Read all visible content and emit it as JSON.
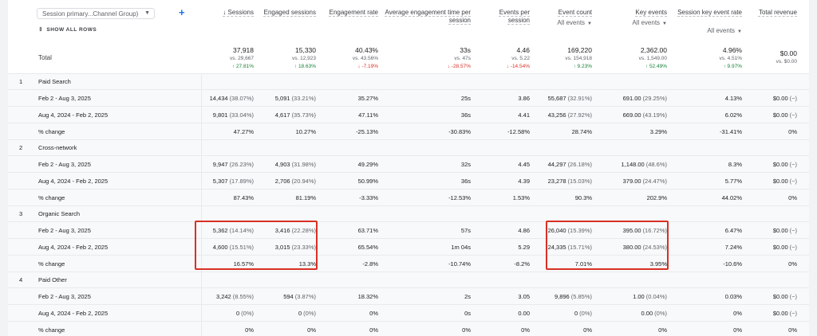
{
  "dimension_select": {
    "label": "Session primary...Channel Group)"
  },
  "show_all_rows": "SHOW ALL ROWS",
  "columns": [
    {
      "key": "sessions",
      "label": "↓ Sessions"
    },
    {
      "key": "engaged",
      "label": "Engaged sessions"
    },
    {
      "key": "engrate",
      "label": "Engagement rate"
    },
    {
      "key": "avgtime",
      "label": "Average engagement time per session"
    },
    {
      "key": "eps",
      "label": "Events per session"
    },
    {
      "key": "events",
      "label": "Event count",
      "sub": "All events"
    },
    {
      "key": "keyev",
      "label": "Key events",
      "sub": "All events"
    },
    {
      "key": "skr",
      "label": "Session key event rate",
      "sub": "All events"
    },
    {
      "key": "rev",
      "label": "Total revenue"
    }
  ],
  "total": {
    "label": "Total",
    "cells": [
      {
        "v": "37,918",
        "vs": "vs. 29,667",
        "ch": "↑ 27.81%",
        "dir": "up"
      },
      {
        "v": "15,330",
        "vs": "vs. 12,923",
        "ch": "↑ 18.63%",
        "dir": "up"
      },
      {
        "v": "40.43%",
        "vs": "vs. 43.56%",
        "ch": "↓ -7.19%",
        "dir": "down"
      },
      {
        "v": "33s",
        "vs": "vs. 47s",
        "ch": "↓ -28.57%",
        "dir": "down"
      },
      {
        "v": "4.46",
        "vs": "vs. 5.22",
        "ch": "↓ -14.54%",
        "dir": "down"
      },
      {
        "v": "169,220",
        "vs": "vs. 154,918",
        "ch": "↑ 9.23%",
        "dir": "up"
      },
      {
        "v": "2,362.00",
        "vs": "vs. 1,549.00",
        "ch": "↑ 52.49%",
        "dir": "up"
      },
      {
        "v": "4.96%",
        "vs": "vs. 4.51%",
        "ch": "↑ 9.97%",
        "dir": "up"
      },
      {
        "v": "$0.00",
        "vs": "vs. $0.00",
        "ch": "",
        "dir": ""
      }
    ]
  },
  "groups": [
    {
      "index": "1",
      "name": "Paid Search",
      "rows": [
        {
          "label": "Feb 2 - Aug 3, 2025",
          "cells": [
            [
              "14,434",
              "(38.07%)"
            ],
            [
              "5,091",
              "(33.21%)"
            ],
            [
              "35.27%",
              ""
            ],
            [
              "25s",
              ""
            ],
            [
              "3.86",
              ""
            ],
            [
              "55,687",
              "(32.91%)"
            ],
            [
              "691.00",
              "(29.25%)"
            ],
            [
              "4.13%",
              ""
            ],
            [
              "$0.00",
              "(−)"
            ]
          ]
        },
        {
          "label": "Aug 4, 2024 - Feb 2, 2025",
          "cells": [
            [
              "9,801",
              "(33.04%)"
            ],
            [
              "4,617",
              "(35.73%)"
            ],
            [
              "47.11%",
              ""
            ],
            [
              "36s",
              ""
            ],
            [
              "4.41",
              ""
            ],
            [
              "43,256",
              "(27.92%)"
            ],
            [
              "669.00",
              "(43.19%)"
            ],
            [
              "6.02%",
              ""
            ],
            [
              "$0.00",
              "(−)"
            ]
          ]
        },
        {
          "label": "% change",
          "cells": [
            [
              "47.27%",
              ""
            ],
            [
              "10.27%",
              ""
            ],
            [
              "-25.13%",
              ""
            ],
            [
              "-30.83%",
              ""
            ],
            [
              "-12.58%",
              ""
            ],
            [
              "28.74%",
              ""
            ],
            [
              "3.29%",
              ""
            ],
            [
              "-31.41%",
              ""
            ],
            [
              "0%",
              ""
            ]
          ]
        }
      ]
    },
    {
      "index": "2",
      "name": "Cross-network",
      "rows": [
        {
          "label": "Feb 2 - Aug 3, 2025",
          "cells": [
            [
              "9,947",
              "(26.23%)"
            ],
            [
              "4,903",
              "(31.98%)"
            ],
            [
              "49.29%",
              ""
            ],
            [
              "32s",
              ""
            ],
            [
              "4.45",
              ""
            ],
            [
              "44,297",
              "(26.18%)"
            ],
            [
              "1,148.00",
              "(48.6%)"
            ],
            [
              "8.3%",
              ""
            ],
            [
              "$0.00",
              "(−)"
            ]
          ]
        },
        {
          "label": "Aug 4, 2024 - Feb 2, 2025",
          "cells": [
            [
              "5,307",
              "(17.89%)"
            ],
            [
              "2,706",
              "(20.94%)"
            ],
            [
              "50.99%",
              ""
            ],
            [
              "36s",
              ""
            ],
            [
              "4.39",
              ""
            ],
            [
              "23,278",
              "(15.03%)"
            ],
            [
              "379.00",
              "(24.47%)"
            ],
            [
              "5.77%",
              ""
            ],
            [
              "$0.00",
              "(−)"
            ]
          ]
        },
        {
          "label": "% change",
          "cells": [
            [
              "87.43%",
              ""
            ],
            [
              "81.19%",
              ""
            ],
            [
              "-3.33%",
              ""
            ],
            [
              "-12.53%",
              ""
            ],
            [
              "1.53%",
              ""
            ],
            [
              "90.3%",
              ""
            ],
            [
              "202.9%",
              ""
            ],
            [
              "44.02%",
              ""
            ],
            [
              "0%",
              ""
            ]
          ]
        }
      ]
    },
    {
      "index": "3",
      "name": "Organic Search",
      "rows": [
        {
          "label": "Feb 2 - Aug 3, 2025",
          "cells": [
            [
              "5,362",
              "(14.14%)"
            ],
            [
              "3,416",
              "(22.28%)"
            ],
            [
              "63.71%",
              ""
            ],
            [
              "57s",
              ""
            ],
            [
              "4.86",
              ""
            ],
            [
              "26,040",
              "(15.39%)"
            ],
            [
              "395.00",
              "(16.72%)"
            ],
            [
              "6.47%",
              ""
            ],
            [
              "$0.00",
              "(−)"
            ]
          ]
        },
        {
          "label": "Aug 4, 2024 - Feb 2, 2025",
          "cells": [
            [
              "4,600",
              "(15.51%)"
            ],
            [
              "3,015",
              "(23.33%)"
            ],
            [
              "65.54%",
              ""
            ],
            [
              "1m 04s",
              ""
            ],
            [
              "5.29",
              ""
            ],
            [
              "24,335",
              "(15.71%)"
            ],
            [
              "380.00",
              "(24.53%)"
            ],
            [
              "7.24%",
              ""
            ],
            [
              "$0.00",
              "(−)"
            ]
          ]
        },
        {
          "label": "% change",
          "cells": [
            [
              "16.57%",
              ""
            ],
            [
              "13.3%",
              ""
            ],
            [
              "-2.8%",
              ""
            ],
            [
              "-10.74%",
              ""
            ],
            [
              "-8.2%",
              ""
            ],
            [
              "7.01%",
              ""
            ],
            [
              "3.95%",
              ""
            ],
            [
              "-10.6%",
              ""
            ],
            [
              "0%",
              ""
            ]
          ]
        }
      ]
    },
    {
      "index": "4",
      "name": "Paid Other",
      "rows": [
        {
          "label": "Feb 2 - Aug 3, 2025",
          "cells": [
            [
              "3,242",
              "(8.55%)"
            ],
            [
              "594",
              "(3.87%)"
            ],
            [
              "18.32%",
              ""
            ],
            [
              "2s",
              ""
            ],
            [
              "3.05",
              ""
            ],
            [
              "9,896",
              "(5.85%)"
            ],
            [
              "1.00",
              "(0.04%)"
            ],
            [
              "0.03%",
              ""
            ],
            [
              "$0.00",
              "(−)"
            ]
          ]
        },
        {
          "label": "Aug 4, 2024 - Feb 2, 2025",
          "cells": [
            [
              "0",
              "(0%)"
            ],
            [
              "0",
              "(0%)"
            ],
            [
              "0%",
              ""
            ],
            [
              "0s",
              ""
            ],
            [
              "0.00",
              ""
            ],
            [
              "0",
              "(0%)"
            ],
            [
              "0.00",
              "(0%)"
            ],
            [
              "0%",
              ""
            ],
            [
              "$0.00",
              "(−)"
            ]
          ]
        },
        {
          "label": "% change",
          "cells": [
            [
              "0%",
              ""
            ],
            [
              "0%",
              ""
            ],
            [
              "0%",
              ""
            ],
            [
              "0%",
              ""
            ],
            [
              "0%",
              ""
            ],
            [
              "0%",
              ""
            ],
            [
              "0%",
              ""
            ],
            [
              "0%",
              ""
            ],
            [
              "0%",
              ""
            ]
          ]
        }
      ]
    }
  ]
}
